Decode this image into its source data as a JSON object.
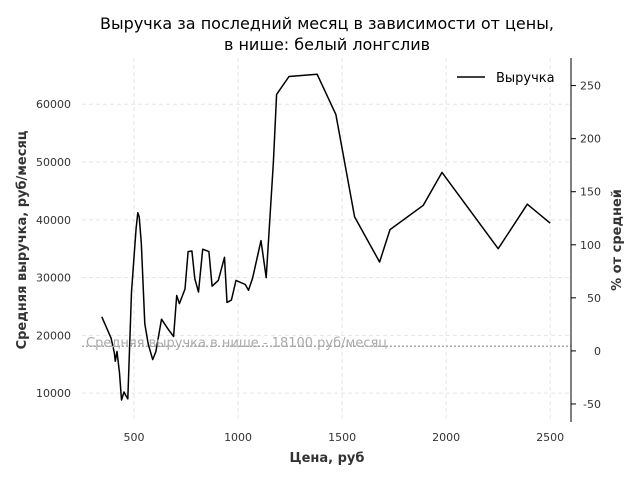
{
  "chart_data": {
    "type": "line",
    "title_line1": "Выручка за последний месяц в зависимости от цены,",
    "title_line2": "в нише: белый лонгслив",
    "xlabel": "Цена, руб",
    "ylabel": "Средняя выручка, руб/месяц",
    "ylabel_right": "% от средней",
    "xlim": [
      250,
      2600
    ],
    "ylim": [
      5000,
      68000
    ],
    "ylim_right": [
      -67,
      276
    ],
    "xticks": [
      500,
      1000,
      1500,
      2000,
      2500
    ],
    "yticks": [
      10000,
      20000,
      30000,
      40000,
      50000,
      60000
    ],
    "yticks_right": [
      -50,
      0,
      50,
      100,
      150,
      200,
      250
    ],
    "grid": true,
    "legend_position": "top-right",
    "series": [
      {
        "name": "Выручка",
        "color": "#000000",
        "x": [
          345,
          390,
          405,
          410,
          418,
          430,
          440,
          452,
          462,
          470,
          488,
          500,
          510,
          518,
          525,
          535,
          552,
          568,
          590,
          605,
          632,
          665,
          690,
          705,
          718,
          732,
          745,
          760,
          778,
          792,
          810,
          830,
          860,
          875,
          905,
          935,
          947,
          968,
          990,
          1035,
          1050,
          1070,
          1110,
          1135,
          1170,
          1185,
          1245,
          1380,
          1470,
          1560,
          1680,
          1730,
          1890,
          1980,
          2250,
          2390,
          2500
        ],
        "values": [
          23200,
          19500,
          17000,
          15500,
          17200,
          13500,
          8800,
          10200,
          9500,
          9000,
          27500,
          33500,
          38500,
          41200,
          40500,
          36000,
          22000,
          18500,
          15800,
          17200,
          22800,
          21000,
          19800,
          26900,
          25500,
          26800,
          28000,
          34500,
          34600,
          29800,
          27500,
          34900,
          34500,
          28500,
          29500,
          33500,
          25700,
          26100,
          29500,
          28800,
          27800,
          29900,
          36400,
          30000,
          50000,
          61700,
          64800,
          65200,
          58200,
          40500,
          32700,
          38300,
          42500,
          48200,
          35000,
          42700,
          39400
        ]
      }
    ],
    "hline": {
      "value": 18100,
      "label": "Средняя выручка в нише - 18100 руб/месяц",
      "color": "#aaaaaa"
    }
  }
}
